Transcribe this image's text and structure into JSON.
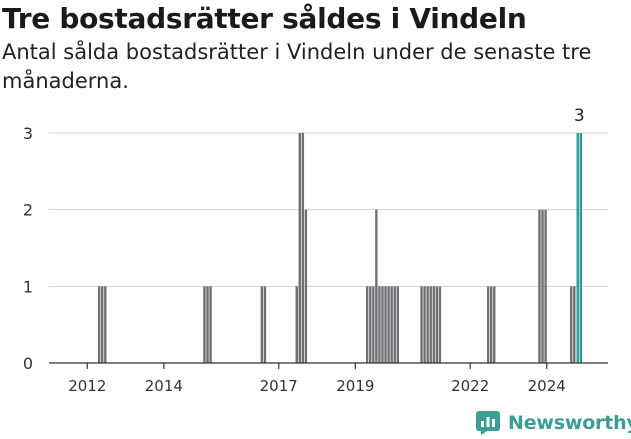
{
  "header": {
    "title": "Tre bostadsrätter såldes i Vindeln",
    "subtitle": "Antal sålda bostadsrätter i Vindeln under de senaste tre månaderna."
  },
  "brand": {
    "name": "Newsworthy"
  },
  "colors": {
    "bar": "#706f73",
    "highlight": "#2a9d99",
    "grid": "#d6d6d6",
    "axis": "#333333",
    "brand": "#3a9e94"
  },
  "chart_data": {
    "type": "bar",
    "title": "Tre bostadsrätter såldes i Vindeln",
    "subtitle": "Antal sålda bostadsrätter i Vindeln under de senaste tre månaderna.",
    "xlabel": "",
    "ylabel": "",
    "ylim": [
      0,
      3
    ],
    "yticks": [
      0,
      1,
      2,
      3
    ],
    "xticks": [
      "2012",
      "2014",
      "2017",
      "2019",
      "2022",
      "2024"
    ],
    "xtick_positions": [
      2012.0,
      2014.0,
      2017.0,
      2019.0,
      2022.0,
      2024.0
    ],
    "grid": true,
    "series": [
      {
        "x": [
          2012.31,
          2012.39,
          2012.47,
          2015.06,
          2015.14,
          2015.22,
          2016.56,
          2016.64,
          2017.47,
          2017.55,
          2017.63,
          2017.71,
          2019.31,
          2019.39,
          2019.47,
          2019.55,
          2019.63,
          2019.71,
          2019.79,
          2019.87,
          2019.95,
          2020.03,
          2020.11,
          2020.73,
          2020.81,
          2020.89,
          2020.97,
          2021.05,
          2021.13,
          2021.21,
          2022.47,
          2022.55,
          2022.63,
          2023.81,
          2023.89,
          2023.97,
          2024.64,
          2024.72
        ],
        "values": [
          1,
          1,
          1,
          1,
          1,
          1,
          1,
          1,
          1,
          3,
          3,
          2,
          1,
          1,
          1,
          2,
          1,
          1,
          1,
          1,
          1,
          1,
          1,
          1,
          1,
          1,
          1,
          1,
          1,
          1,
          1,
          1,
          1,
          2,
          2,
          2,
          1,
          1
        ]
      },
      {
        "x": [
          2024.81,
          2024.89
        ],
        "values": [
          3,
          3
        ]
      }
    ],
    "annotations": [
      {
        "x": 2024.85,
        "y": 3,
        "text": "3"
      }
    ]
  }
}
